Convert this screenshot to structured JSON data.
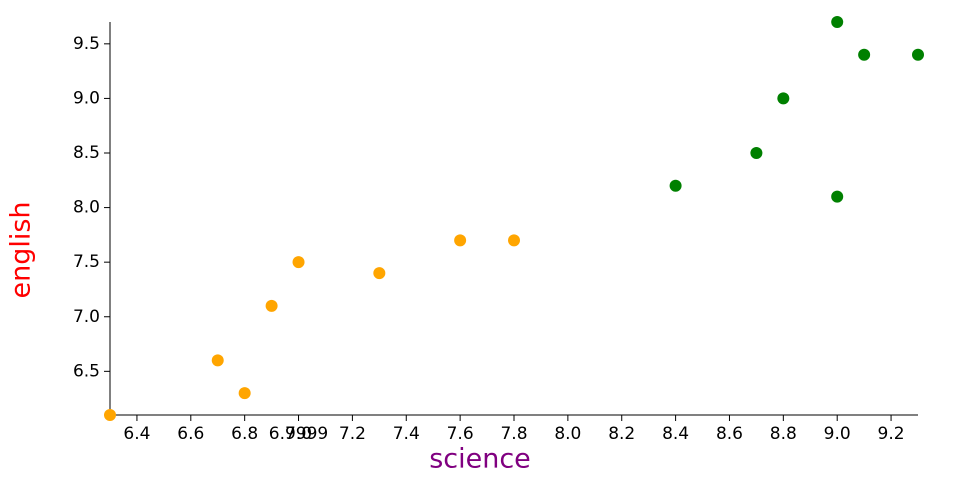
{
  "chart_data": {
    "type": "scatter",
    "xlabel": "science",
    "ylabel": "english",
    "xlabel_color": "#800080",
    "ylabel_color": "#ff0000",
    "xlim": [
      6.3,
      9.3
    ],
    "ylim": [
      6.1,
      9.7
    ],
    "xticks": [
      6.4,
      6.6,
      6.8,
      6.9999,
      {
        "value": 7,
        "label": "7.0"
      },
      7.2,
      7.4,
      7.6,
      7.8,
      {
        "value": 8,
        "label": "8.0"
      },
      8.2,
      8.4,
      8.6,
      8.8,
      {
        "value": 9,
        "label": "9.0"
      },
      9.2
    ],
    "yticks": [
      6.5,
      {
        "value": 7,
        "label": "7.0"
      },
      7.5,
      {
        "value": 8,
        "label": "8.0"
      },
      8.5,
      {
        "value": 9,
        "label": "9.0"
      },
      9.5
    ],
    "series": [
      {
        "color": "#ffa500",
        "x": [
          6.3,
          6.7,
          6.8,
          6.9,
          7.0,
          7.3,
          7.6,
          7.8
        ],
        "values": [
          6.1,
          6.6,
          6.3,
          7.1,
          7.5,
          7.4,
          7.7,
          7.7
        ]
      },
      {
        "color": "#008000",
        "x": [
          8.4,
          8.7,
          8.8,
          9.0,
          9.0,
          9.1,
          9.3
        ],
        "values": [
          8.2,
          8.5,
          9.0,
          9.7,
          8.1,
          9.4,
          9.4
        ]
      }
    ]
  }
}
